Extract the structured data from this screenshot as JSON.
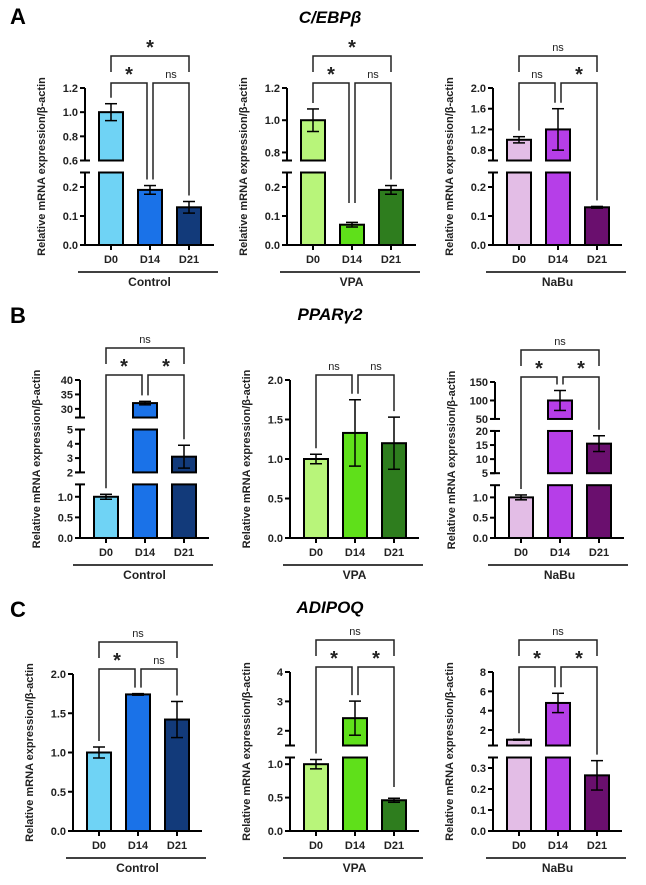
{
  "panels": [
    {
      "letter": "A",
      "gene": "C/EBPβ"
    },
    {
      "letter": "B",
      "gene": "PPARγ2"
    },
    {
      "letter": "C",
      "gene": "ADIPOQ"
    }
  ],
  "chart_data": [
    {
      "type": "bar",
      "panel": "A",
      "gene": "C/EBPβ",
      "group": "Control",
      "ylabel": "Relative mRNA expression/β-actin",
      "categories": [
        "D0",
        "D14",
        "D21"
      ],
      "values": [
        1.0,
        0.19,
        0.13
      ],
      "errors": [
        0.07,
        0.015,
        0.02
      ],
      "colors": [
        "#6fd3f5",
        "#1a72e8",
        "#123a7a"
      ],
      "axis_segments": [
        {
          "range": [
            0,
            0.25
          ],
          "ticks": [
            "0.0",
            "0.1",
            "0.2"
          ],
          "tickvals": [
            0,
            0.1,
            0.2
          ]
        },
        {
          "range": [
            0.6,
            1.2
          ],
          "ticks": [
            "0.6",
            "0.8",
            "1.0",
            "1.2"
          ],
          "tickvals": [
            0.6,
            0.8,
            1.0,
            1.2
          ]
        }
      ],
      "comparisons": [
        {
          "from": "D0",
          "to": "D14",
          "label": "*"
        },
        {
          "from": "D14",
          "to": "D21",
          "label": "ns"
        },
        {
          "from": "D0",
          "to": "D21",
          "label": "*"
        }
      ]
    },
    {
      "type": "bar",
      "panel": "A",
      "gene": "C/EBPβ",
      "group": "VPA",
      "ylabel": "Relative mRNA expression/β-actin",
      "categories": [
        "D0",
        "D14",
        "D21"
      ],
      "values": [
        1.0,
        0.07,
        0.19
      ],
      "errors": [
        0.07,
        0.008,
        0.015
      ],
      "colors": [
        "#b8f57a",
        "#5fe01a",
        "#2e7d1e"
      ],
      "axis_segments": [
        {
          "range": [
            0,
            0.25
          ],
          "ticks": [
            "0.0",
            "0.1",
            "0.2"
          ],
          "tickvals": [
            0,
            0.1,
            0.2
          ]
        },
        {
          "range": [
            0.75,
            1.2
          ],
          "ticks": [
            "0.8",
            "1.0",
            "1.2"
          ],
          "tickvals": [
            0.8,
            1.0,
            1.2
          ]
        }
      ],
      "comparisons": [
        {
          "from": "D0",
          "to": "D14",
          "label": "*"
        },
        {
          "from": "D14",
          "to": "D21",
          "label": "ns"
        },
        {
          "from": "D0",
          "to": "D21",
          "label": "*"
        }
      ]
    },
    {
      "type": "bar",
      "panel": "A",
      "gene": "C/EBPβ",
      "group": "NaBu",
      "ylabel": "Relative mRNA expression/β-actin",
      "categories": [
        "D0",
        "D14",
        "D21"
      ],
      "values": [
        1.0,
        1.2,
        0.13
      ],
      "errors": [
        0.06,
        0.4,
        0.003
      ],
      "colors": [
        "#e3bde6",
        "#b63ee8",
        "#6a0f6e"
      ],
      "axis_segments": [
        {
          "range": [
            0,
            0.25
          ],
          "ticks": [
            "0.0",
            "0.1",
            "0.2"
          ],
          "tickvals": [
            0,
            0.1,
            0.2
          ]
        },
        {
          "range": [
            0.6,
            2.0
          ],
          "ticks": [
            "0.8",
            "1.2",
            "1.6",
            "2.0"
          ],
          "tickvals": [
            0.8,
            1.2,
            1.6,
            2.0
          ]
        }
      ],
      "comparisons": [
        {
          "from": "D0",
          "to": "D14",
          "label": "ns"
        },
        {
          "from": "D14",
          "to": "D21",
          "label": "*"
        },
        {
          "from": "D0",
          "to": "D21",
          "label": "ns"
        }
      ]
    },
    {
      "type": "bar",
      "panel": "B",
      "gene": "PPARγ2",
      "group": "Control",
      "ylabel": "Relative mRNA expression/β-actin",
      "categories": [
        "D0",
        "D14",
        "D21"
      ],
      "values": [
        1.0,
        32.0,
        3.1
      ],
      "errors": [
        0.06,
        0.6,
        0.8
      ],
      "colors": [
        "#6fd3f5",
        "#1a72e8",
        "#123a7a"
      ],
      "axis_segments": [
        {
          "range": [
            0,
            1.3
          ],
          "ticks": [
            "0.0",
            "0.5",
            "1.0"
          ],
          "tickvals": [
            0,
            0.5,
            1.0
          ]
        },
        {
          "range": [
            2,
            5
          ],
          "ticks": [
            "2",
            "3",
            "4",
            "5"
          ],
          "tickvals": [
            2,
            3,
            4,
            5
          ]
        },
        {
          "range": [
            27,
            40
          ],
          "ticks": [
            "30",
            "35",
            "40"
          ],
          "tickvals": [
            30,
            35,
            40
          ]
        }
      ],
      "comparisons": [
        {
          "from": "D0",
          "to": "D14",
          "label": "*"
        },
        {
          "from": "D14",
          "to": "D21",
          "label": "*"
        },
        {
          "from": "D0",
          "to": "D21",
          "label": "ns"
        }
      ]
    },
    {
      "type": "bar",
      "panel": "B",
      "gene": "PPARγ2",
      "group": "VPA",
      "ylabel": "Relative mRNA expression/β-actin",
      "categories": [
        "D0",
        "D14",
        "D21"
      ],
      "values": [
        1.0,
        1.33,
        1.2
      ],
      "errors": [
        0.06,
        0.42,
        0.33
      ],
      "colors": [
        "#b8f57a",
        "#5fe01a",
        "#2e7d1e"
      ],
      "axis_segments": [
        {
          "range": [
            0,
            2.0
          ],
          "ticks": [
            "0.0",
            "0.5",
            "1.0",
            "1.5",
            "2.0"
          ],
          "tickvals": [
            0,
            0.5,
            1.0,
            1.5,
            2.0
          ]
        }
      ],
      "comparisons": [
        {
          "from": "D0",
          "to": "D14",
          "label": "ns"
        },
        {
          "from": "D14",
          "to": "D21",
          "label": "ns"
        }
      ]
    },
    {
      "type": "bar",
      "panel": "B",
      "gene": "PPARγ2",
      "group": "NaBu",
      "ylabel": "Relative mRNA expression/β-actin",
      "categories": [
        "D0",
        "D14",
        "D21"
      ],
      "values": [
        1.0,
        100,
        15.5
      ],
      "errors": [
        0.06,
        27,
        2.8
      ],
      "colors": [
        "#e3bde6",
        "#b63ee8",
        "#6a0f6e"
      ],
      "axis_segments": [
        {
          "range": [
            0,
            1.3
          ],
          "ticks": [
            "0.0",
            "0.5",
            "1.0"
          ],
          "tickvals": [
            0,
            0.5,
            1.0
          ]
        },
        {
          "range": [
            5,
            20
          ],
          "ticks": [
            "5",
            "10",
            "15",
            "20"
          ],
          "tickvals": [
            5,
            10,
            15,
            20
          ]
        },
        {
          "range": [
            50,
            150
          ],
          "ticks": [
            "50",
            "100",
            "150"
          ],
          "tickvals": [
            50,
            100,
            150
          ]
        }
      ],
      "comparisons": [
        {
          "from": "D0",
          "to": "D14",
          "label": "*"
        },
        {
          "from": "D14",
          "to": "D21",
          "label": "*"
        },
        {
          "from": "D0",
          "to": "D21",
          "label": "ns"
        }
      ]
    },
    {
      "type": "bar",
      "panel": "C",
      "gene": "ADIPOQ",
      "group": "Control",
      "ylabel": "Relative mRNA expression/β-actin",
      "categories": [
        "D0",
        "D14",
        "D21"
      ],
      "values": [
        1.0,
        1.74,
        1.42
      ],
      "errors": [
        0.07,
        0.01,
        0.23
      ],
      "colors": [
        "#6fd3f5",
        "#1a72e8",
        "#123a7a"
      ],
      "axis_segments": [
        {
          "range": [
            0,
            2.0
          ],
          "ticks": [
            "0.0",
            "0.5",
            "1.0",
            "1.5",
            "2.0"
          ],
          "tickvals": [
            0,
            0.5,
            1.0,
            1.5,
            2.0
          ]
        }
      ],
      "comparisons": [
        {
          "from": "D0",
          "to": "D14",
          "label": "*"
        },
        {
          "from": "D14",
          "to": "D21",
          "label": "ns"
        },
        {
          "from": "D0",
          "to": "D21",
          "label": "ns"
        }
      ]
    },
    {
      "type": "bar",
      "panel": "C",
      "gene": "ADIPOQ",
      "group": "VPA",
      "ylabel": "Relative mRNA expression/β-actin",
      "categories": [
        "D0",
        "D14",
        "D21"
      ],
      "values": [
        1.0,
        2.43,
        0.46
      ],
      "errors": [
        0.07,
        0.58,
        0.03
      ],
      "colors": [
        "#b8f57a",
        "#5fe01a",
        "#2e7d1e"
      ],
      "axis_segments": [
        {
          "range": [
            0,
            1.1
          ],
          "ticks": [
            "0.0",
            "0.5",
            "1.0"
          ],
          "tickvals": [
            0,
            0.5,
            1.0
          ]
        },
        {
          "range": [
            1.5,
            4
          ],
          "ticks": [
            "2",
            "3",
            "4"
          ],
          "tickvals": [
            2,
            3,
            4
          ]
        }
      ],
      "comparisons": [
        {
          "from": "D0",
          "to": "D14",
          "label": "*"
        },
        {
          "from": "D14",
          "to": "D21",
          "label": "*"
        },
        {
          "from": "D0",
          "to": "D21",
          "label": "ns"
        }
      ]
    },
    {
      "type": "bar",
      "panel": "C",
      "gene": "ADIPOQ",
      "group": "NaBu",
      "ylabel": "Relative mRNA expression/β-actin",
      "categories": [
        "D0",
        "D14",
        "D21"
      ],
      "values": [
        1.0,
        4.8,
        0.265
      ],
      "errors": [
        0.05,
        1.0,
        0.07
      ],
      "colors": [
        "#e3bde6",
        "#b63ee8",
        "#6a0f6e"
      ],
      "axis_segments": [
        {
          "range": [
            0,
            0.35
          ],
          "ticks": [
            "0.0",
            "0.1",
            "0.2",
            "0.3"
          ],
          "tickvals": [
            0,
            0.1,
            0.2,
            0.3
          ]
        },
        {
          "range": [
            0.4,
            8
          ],
          "ticks": [
            "2",
            "4",
            "6",
            "8"
          ],
          "tickvals": [
            2,
            4,
            6,
            8
          ]
        }
      ],
      "comparisons": [
        {
          "from": "D0",
          "to": "D14",
          "label": "*"
        },
        {
          "from": "D14",
          "to": "D21",
          "label": "*"
        },
        {
          "from": "D0",
          "to": "D21",
          "label": "ns"
        }
      ]
    }
  ]
}
